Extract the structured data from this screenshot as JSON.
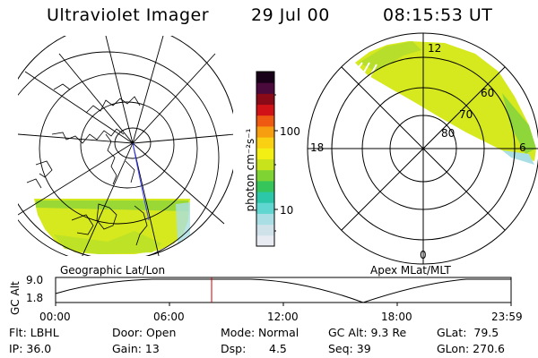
{
  "header": {
    "title": "Ultraviolet Imager",
    "date": "29 Jul 00",
    "time": "08:15:53 UT"
  },
  "left_panel": {
    "caption": "Geographic Lat/Lon"
  },
  "right_panel": {
    "caption": "Apex MLat/MLT",
    "mlt_labels": {
      "top": "12",
      "left": "18",
      "right": "6",
      "bottom": "0"
    },
    "lat_labels": [
      "60",
      "70",
      "80"
    ]
  },
  "colorbar": {
    "unit_label": "photon cm⁻²s⁻¹",
    "ticks": [
      "100",
      "10"
    ],
    "colors": [
      "#e8ecf2",
      "#cfe2ea",
      "#a9dfe4",
      "#5fd6cf",
      "#2cc7a8",
      "#36c55a",
      "#7fd434",
      "#c8e21c",
      "#f3ef14",
      "#f9d012",
      "#f79d10",
      "#ef5a12",
      "#d11216",
      "#8a0a18",
      "#4a0a3c",
      "#180018"
    ]
  },
  "altitude_plot": {
    "ylabel": "GC Alt",
    "y_ticks": [
      "9.0",
      "1.8"
    ],
    "x_ticks": [
      "00:00",
      "06:00",
      "12:00",
      "18:00",
      "23:59"
    ],
    "current_marker_color": "#cc0000"
  },
  "info": {
    "filter": "Flt: LBHL",
    "ip": "IP: 36.0",
    "door": "Door: Open",
    "gain": "Gain: 13",
    "mode_label": "Mode:",
    "mode_value": "Normal",
    "dsp_label": "Dsp:",
    "dsp_value": "4.5",
    "gc_alt": "GC Alt: 9.3 Re",
    "seq": "Seq: 39",
    "glat": "GLat:  79.5",
    "glon": "GLon: 270.6"
  }
}
